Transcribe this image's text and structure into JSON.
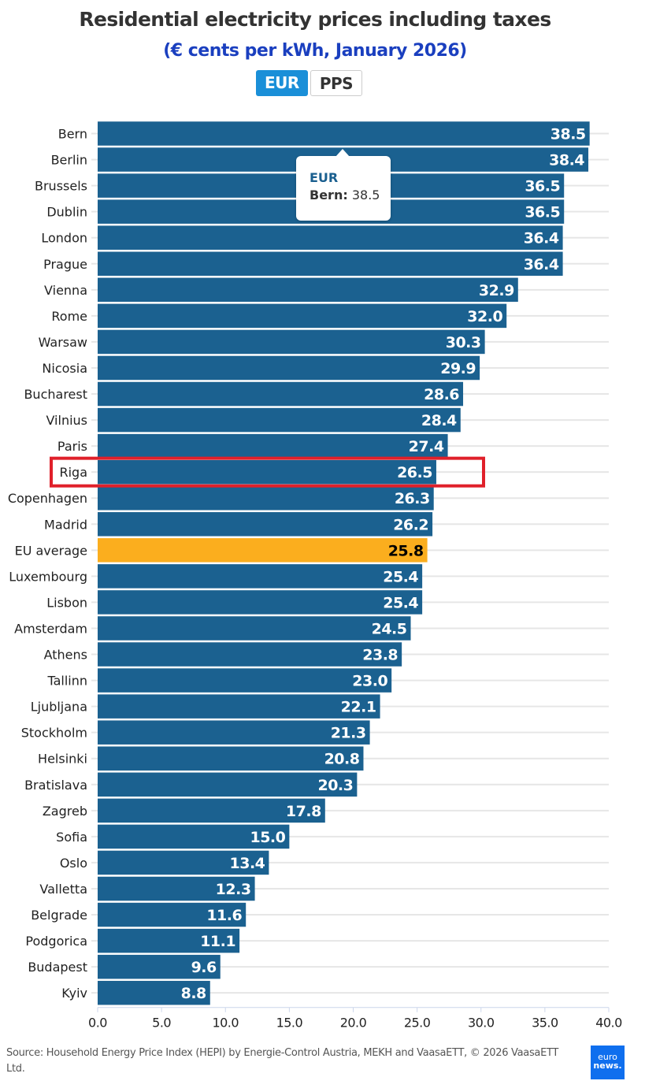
{
  "header": {
    "title": "Residential electricity prices including taxes",
    "subtitle": "(€ cents per kWh, January 2026)"
  },
  "toggle": {
    "options": [
      "EUR",
      "PPS"
    ],
    "selected": "EUR"
  },
  "tooltip": {
    "series": "EUR",
    "category": "Bern:",
    "value": "38.5"
  },
  "highlight": {
    "category": "Riga",
    "color": "#e0202a"
  },
  "colors": {
    "bar": "#1b6190",
    "eu_average": "#fbae1e",
    "grid": "#e6e6e6"
  },
  "footer": {
    "source": "Source: Household Energy Price Index (HEPI) by Energie-Control Austria, MEKH and VaasaETT, © 2026 VaasaETT Ltd.",
    "logo_line1": "euro",
    "logo_line2": "news."
  },
  "chart_data": {
    "type": "bar",
    "orientation": "horizontal",
    "title": "Residential electricity prices including taxes",
    "subtitle": "(€ cents per kWh, January 2026)",
    "xlabel": "",
    "ylabel": "",
    "xlim": [
      0,
      40
    ],
    "x_ticks": [
      "0.0",
      "5.0",
      "10.0",
      "15.0",
      "20.0",
      "25.0",
      "30.0",
      "35.0",
      "40.0"
    ],
    "grid": "horizontal",
    "categories": [
      "Bern",
      "Berlin",
      "Brussels",
      "Dublin",
      "London",
      "Prague",
      "Vienna",
      "Rome",
      "Warsaw",
      "Nicosia",
      "Bucharest",
      "Vilnius",
      "Paris",
      "Riga",
      "Copenhagen",
      "Madrid",
      "EU average",
      "Luxembourg",
      "Lisbon",
      "Amsterdam",
      "Athens",
      "Tallinn",
      "Ljubljana",
      "Stockholm",
      "Helsinki",
      "Bratislava",
      "Zagreb",
      "Sofia",
      "Oslo",
      "Valletta",
      "Belgrade",
      "Podgorica",
      "Budapest",
      "Kyiv"
    ],
    "values": [
      38.5,
      38.4,
      36.5,
      36.5,
      36.4,
      36.4,
      32.9,
      32.0,
      30.3,
      29.9,
      28.6,
      28.4,
      27.4,
      26.5,
      26.3,
      26.2,
      25.8,
      25.4,
      25.4,
      24.5,
      23.8,
      23.0,
      22.1,
      21.3,
      20.8,
      20.3,
      17.8,
      15.0,
      13.4,
      12.3,
      11.6,
      11.1,
      9.6,
      8.8
    ],
    "labels": [
      "38.5",
      "38.4",
      "36.5",
      "36.5",
      "36.4",
      "36.4",
      "32.9",
      "32.0",
      "30.3",
      "29.9",
      "28.6",
      "28.4",
      "27.4",
      "26.5",
      "26.3",
      "26.2",
      "25.8",
      "25.4",
      "25.4",
      "24.5",
      "23.8",
      "23.0",
      "22.1",
      "21.3",
      "20.8",
      "20.3",
      "17.8",
      "15.0",
      "13.4",
      "12.3",
      "11.6",
      "11.1",
      "9.6",
      "8.8"
    ],
    "series_name": "EUR"
  }
}
